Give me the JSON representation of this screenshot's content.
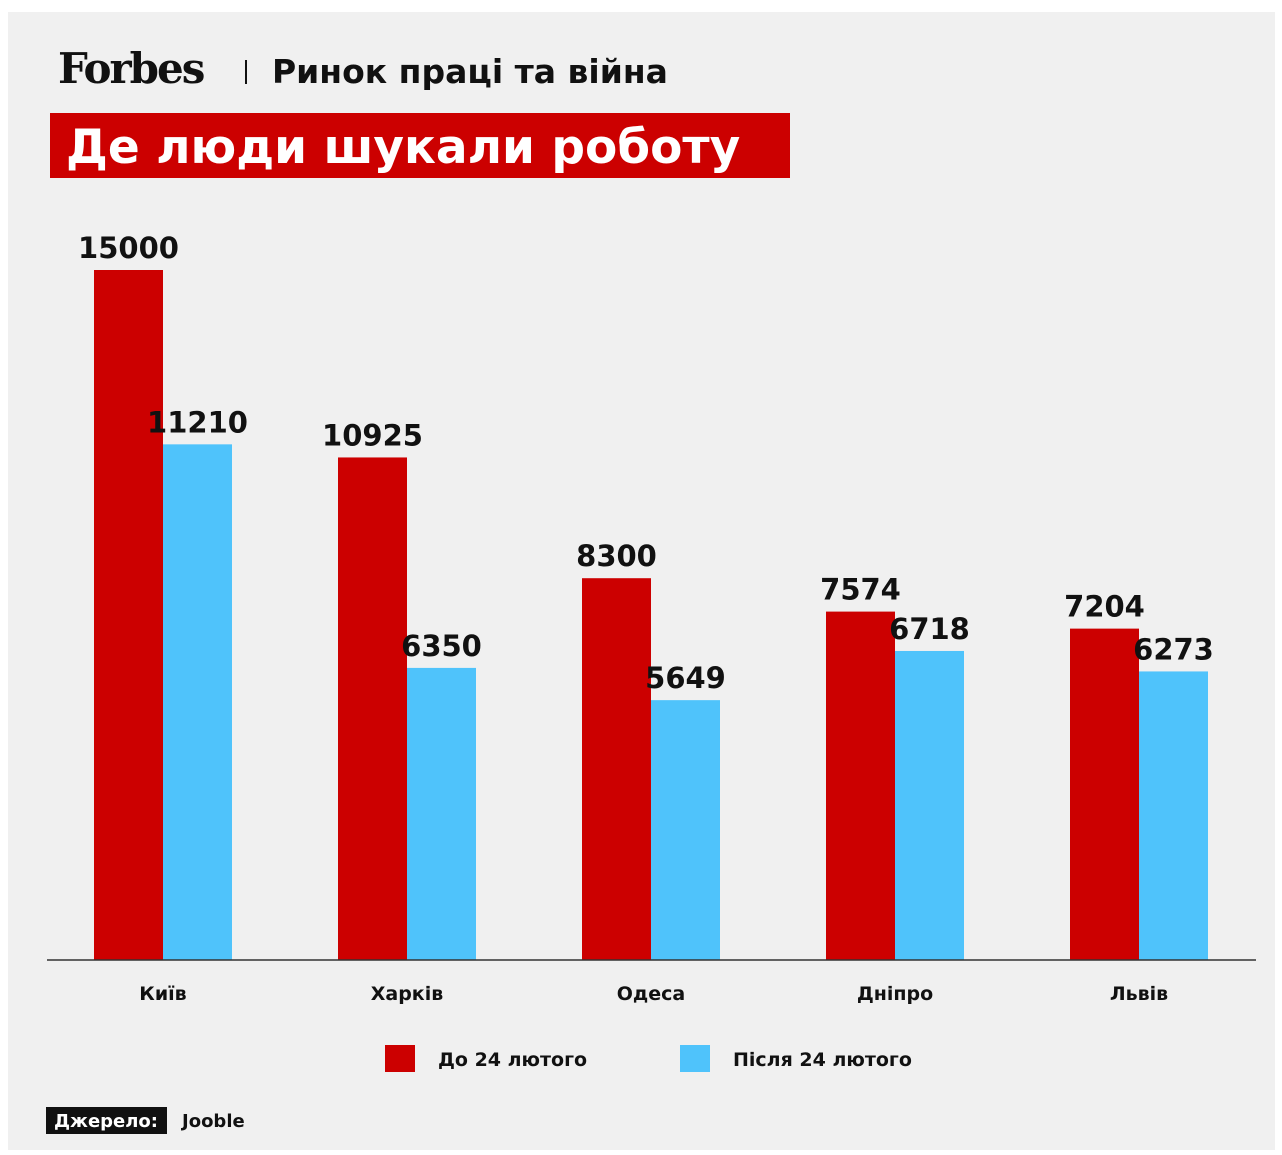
{
  "chart_data": {
    "type": "bar",
    "brand": "Forbes",
    "subtitle": "Ринок праці та війна",
    "title": "Де люди шукали роботу",
    "categories": [
      "Київ",
      "Харків",
      "Одеса",
      "Дніпро",
      "Львів"
    ],
    "series": [
      {
        "name": "До 24 лютого",
        "color": "#cc0000",
        "values": [
          15000,
          10925,
          8300,
          7574,
          7204
        ]
      },
      {
        "name": "Після 24 лютого",
        "color": "#4fc3fb",
        "values": [
          11210,
          6350,
          5649,
          6718,
          6273
        ]
      }
    ],
    "source_label": "Джерело:",
    "source": "Jooble"
  }
}
